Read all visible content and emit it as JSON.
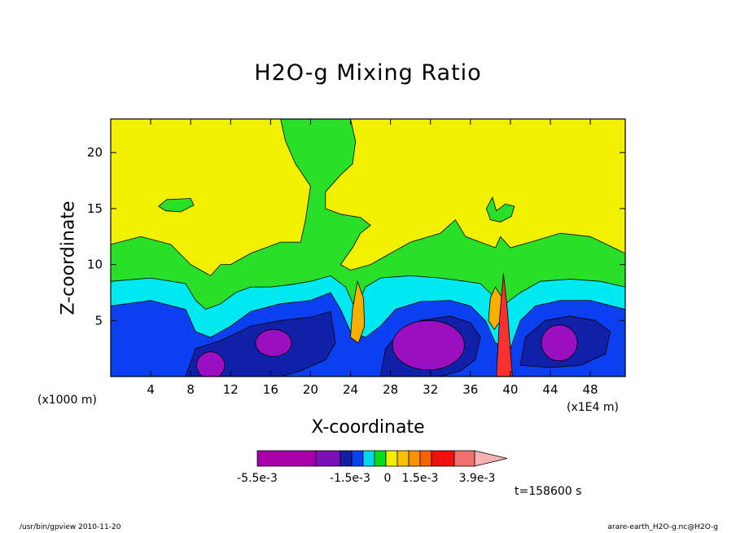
{
  "chart_data": {
    "type": "heatmap",
    "title": "H2O-g Mixing Ratio",
    "xlabel": "X-coordinate",
    "ylabel": "Z-coordinate",
    "x_unit": "(x1000 m)",
    "x_unit_right": "(x1E4 m)",
    "time_label": "t=158600 s",
    "x_ticks": [
      "4",
      "8",
      "12",
      "16",
      "20",
      "24",
      "28",
      "32",
      "36",
      "40",
      "44",
      "48"
    ],
    "y_ticks": [
      "5",
      "10",
      "15",
      "20"
    ],
    "xlim": [
      0,
      51.5
    ],
    "ylim": [
      0,
      23
    ],
    "colorbar": {
      "labels": [
        "-5.5e-3",
        "-1.5e-3",
        "0",
        "1.5e-3",
        "3.9e-3"
      ],
      "colors": [
        "#a800a8",
        "#7a10b8",
        "#1020a0",
        "#0a40f0",
        "#00d8f0",
        "#00e018",
        "#f0f000",
        "#f8c000",
        "#f89000",
        "#f86000",
        "#f01010",
        "#f07070",
        "#f8b0b0"
      ]
    },
    "levels": {
      "yellow": "#f0f000",
      "green": "#28e028",
      "cyan": "#00e8f0",
      "blue": "#0a40f0",
      "darkblue": "#1020a8",
      "purple": "#9a10c0",
      "orange": "#f8b000",
      "red": "#f83030"
    },
    "features": [
      {
        "name": "upper yellow region",
        "x_range": [
          0,
          51.5
        ],
        "z_range": [
          10,
          23
        ],
        "level": "yellow"
      },
      {
        "name": "green mid layer",
        "x_range": [
          0,
          51.5
        ],
        "z_range": [
          7,
          12
        ],
        "level": "green"
      },
      {
        "name": "cyan layer",
        "x_range": [
          0,
          51.5
        ],
        "z_range": [
          5,
          9
        ],
        "level": "cyan"
      },
      {
        "name": "blue layer",
        "x_range": [
          0,
          51.5
        ],
        "z_range": [
          1,
          6
        ],
        "level": "blue"
      },
      {
        "name": "purple minimum 1",
        "center": [
          10,
          1.2
        ],
        "level": "purple"
      },
      {
        "name": "purple minimum 2",
        "center": [
          16.5,
          3.2
        ],
        "level": "purple"
      },
      {
        "name": "purple minimum 3",
        "center": [
          32,
          3
        ],
        "level": "purple"
      },
      {
        "name": "purple minimum 4",
        "center": [
          45,
          3
        ],
        "level": "purple"
      },
      {
        "name": "positive anomaly",
        "center": [
          24.5,
          5.5
        ],
        "level": "orange"
      },
      {
        "name": "positive anomaly",
        "center": [
          38.5,
          6
        ],
        "level": "red"
      }
    ]
  },
  "footer": {
    "left": "/usr/bin/gpview  2010-11-20",
    "right": "arare-earth_H2O-g.nc@H2O-g"
  }
}
